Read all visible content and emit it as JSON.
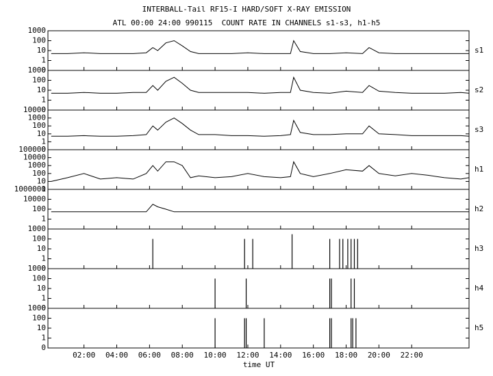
{
  "chart_data": {
    "type": "line",
    "title": "INTERBALL-Tail RF15-I HARD/SOFT X-RAY EMISSION",
    "subtitle": "ATL 00:00 24:00 990115  COUNT RATE IN CHANNELS s1-s3, h1-h5",
    "xlabel": "time UT",
    "xlim": [
      -0.2,
      25.5
    ],
    "xticks": [
      {
        "value": 2,
        "label": "02:00"
      },
      {
        "value": 4,
        "label": "04:00"
      },
      {
        "value": 6,
        "label": "06:00"
      },
      {
        "value": 8,
        "label": "08:00"
      },
      {
        "value": 10,
        "label": "10:00"
      },
      {
        "value": 12,
        "label": "12:00"
      },
      {
        "value": 14,
        "label": "14:00"
      },
      {
        "value": 16,
        "label": "16:00"
      },
      {
        "value": 18,
        "label": "18:00"
      },
      {
        "value": 20,
        "label": "20:00"
      },
      {
        "value": 22,
        "label": "22:00"
      }
    ],
    "log_scale": true,
    "color": "#000000",
    "panels": [
      {
        "name": "s1",
        "style": "line",
        "ylim": [
          0.1,
          1000
        ],
        "yticks": [
          {
            "value": 0.1,
            "label": "0"
          },
          1,
          10,
          100,
          1000
        ],
        "x": [
          0,
          1,
          2,
          3,
          4,
          5,
          5.8,
          6.2,
          6.5,
          7,
          7.5,
          8,
          8.5,
          9,
          10,
          11,
          12,
          13,
          14,
          14.6,
          14.8,
          15.2,
          16,
          17,
          18,
          19,
          19.4,
          20,
          21,
          22,
          23,
          24,
          25,
          25.5
        ],
        "values": [
          5,
          5,
          6,
          5,
          5,
          5,
          6,
          20,
          10,
          60,
          100,
          30,
          8,
          5,
          5,
          5,
          6,
          5,
          5,
          5,
          100,
          8,
          5,
          5,
          6,
          5,
          20,
          6,
          5,
          5,
          5,
          5,
          5,
          5
        ]
      },
      {
        "name": "s2",
        "style": "line",
        "ylim": [
          0.1,
          1000
        ],
        "yticks": [
          {
            "value": 0.1,
            "label": "0"
          },
          1,
          10,
          100,
          1000
        ],
        "x": [
          0,
          1,
          2,
          3,
          4,
          5,
          5.8,
          6.2,
          6.5,
          7,
          7.5,
          8,
          8.5,
          9,
          10,
          11,
          12,
          13,
          14,
          14.6,
          14.8,
          15.2,
          16,
          17,
          18,
          19,
          19.4,
          20,
          21,
          22,
          23,
          24,
          25,
          25.5
        ],
        "values": [
          5,
          5,
          6,
          5,
          5,
          6,
          6,
          30,
          10,
          80,
          200,
          50,
          10,
          6,
          6,
          6,
          6,
          5,
          6,
          6,
          200,
          10,
          6,
          5,
          8,
          6,
          30,
          8,
          6,
          5,
          5,
          5,
          6,
          5
        ]
      },
      {
        "name": "s3",
        "style": "line",
        "ylim": [
          0.1,
          10000
        ],
        "yticks": [
          {
            "value": 0.1,
            "label": "0"
          },
          1,
          10,
          100,
          1000,
          10000
        ],
        "x": [
          0,
          1,
          2,
          3,
          4,
          5,
          5.8,
          6.2,
          6.5,
          7,
          7.5,
          8,
          8.5,
          9,
          10,
          11,
          12,
          13,
          14,
          14.6,
          14.8,
          15.2,
          16,
          17,
          18,
          19,
          19.4,
          20,
          21,
          22,
          23,
          24,
          25,
          25.5
        ],
        "values": [
          5,
          5,
          6,
          5,
          5,
          6,
          8,
          100,
          30,
          300,
          1000,
          200,
          30,
          8,
          8,
          6,
          6,
          5,
          6,
          8,
          500,
          15,
          8,
          8,
          10,
          10,
          100,
          10,
          8,
          6,
          6,
          6,
          6,
          5
        ]
      },
      {
        "name": "h1",
        "style": "line",
        "ylim": [
          1,
          100000
        ],
        "yticks": [
          1,
          10,
          100,
          1000,
          10000,
          100000
        ],
        "x": [
          0,
          1,
          2,
          3,
          4,
          5,
          5.8,
          6.2,
          6.5,
          7,
          7.5,
          8,
          8.5,
          9,
          10,
          11,
          12,
          13,
          14,
          14.6,
          14.8,
          15.2,
          16,
          17,
          18,
          19,
          19.4,
          20,
          21,
          22,
          23,
          24,
          25,
          25.5
        ],
        "values": [
          10,
          30,
          100,
          20,
          30,
          20,
          100,
          1000,
          200,
          3000,
          3000,
          1000,
          30,
          50,
          30,
          40,
          100,
          40,
          30,
          40,
          3000,
          100,
          40,
          100,
          300,
          200,
          1000,
          100,
          50,
          100,
          60,
          30,
          20,
          30
        ]
      },
      {
        "name": "h2",
        "style": "line",
        "ylim": [
          0.01,
          1000000
        ],
        "yticks": [
          1,
          100,
          10000,
          1000000
        ],
        "x": [
          0,
          1,
          2,
          3,
          4,
          5,
          5.8,
          6.2,
          6.5,
          7,
          7.5,
          8,
          8.5,
          9,
          10,
          11,
          12,
          13,
          14,
          14.6,
          14.8,
          15.2,
          16,
          17,
          18,
          19,
          19.4,
          20,
          21,
          22,
          23,
          24,
          25,
          25.5
        ],
        "values": [
          30,
          30,
          30,
          30,
          30,
          30,
          30,
          1000,
          300,
          100,
          30,
          30,
          30,
          30,
          30,
          30,
          30,
          30,
          30,
          30,
          30,
          30,
          30,
          30,
          30,
          30,
          30,
          30,
          30,
          30,
          30,
          30,
          30,
          30
        ]
      },
      {
        "name": "h3",
        "style": "spikes",
        "ylim": [
          0.1,
          1000
        ],
        "yticks": [
          {
            "value": 0.1,
            "label": "0"
          },
          1,
          10,
          100,
          1000
        ],
        "x": [
          6.2,
          11.8,
          12.3,
          14.7,
          17.0,
          17.6,
          17.8,
          18.1,
          18.3,
          18.5,
          18.7
        ],
        "values": [
          100,
          100,
          100,
          300,
          100,
          100,
          100,
          100,
          100,
          100,
          100
        ]
      },
      {
        "name": "h4",
        "style": "spikes",
        "ylim": [
          0.1,
          1000
        ],
        "yticks": [
          {
            "value": 0.1,
            "label": "0"
          },
          1,
          10,
          100,
          1000
        ],
        "x": [
          10,
          11.9,
          17.0,
          17.1,
          18.3,
          18.5
        ],
        "values": [
          100,
          100,
          100,
          100,
          100,
          100
        ]
      },
      {
        "name": "h5",
        "style": "spikes",
        "ylim": [
          0.1,
          1000
        ],
        "yticks": [
          {
            "value": 0.1,
            "label": "0"
          },
          1,
          10,
          100,
          1000
        ],
        "x": [
          10,
          11.8,
          11.9,
          13.0,
          17.0,
          17.1,
          18.3,
          18.4,
          18.6
        ],
        "values": [
          100,
          100,
          100,
          100,
          100,
          100,
          100,
          100,
          100
        ]
      }
    ]
  }
}
